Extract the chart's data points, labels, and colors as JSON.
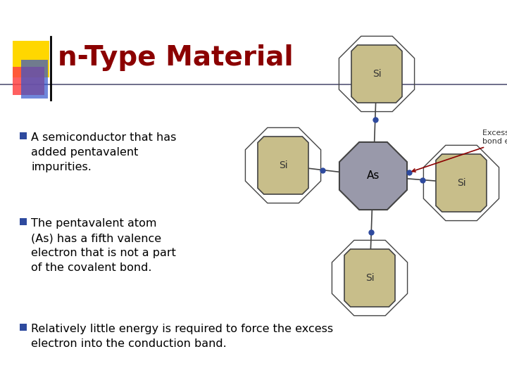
{
  "title": "n-Type Material",
  "title_color": "#8B0000",
  "title_fontsize": 28,
  "bg_color": "#FFFFFF",
  "bullet_color": "#2E4A9E",
  "text_color": "#000000",
  "bullet1": "A semiconductor that has\nadded pentavalent\nimpurities.",
  "bullet2": "The pentavalent atom\n(As) has a fifth valence\nelectron that is not a part\nof the covalent bond.",
  "bullet3": "Relatively little energy is required to force the excess\nelectron into the conduction band.",
  "si_color": "#C8BE8A",
  "as_color": "#9999AA",
  "bond_dot_color": "#2E4A9E",
  "edge_color": "#444444",
  "annotation_color": "#8B0000",
  "annotation_text": "Excess covalent\nbond electron"
}
